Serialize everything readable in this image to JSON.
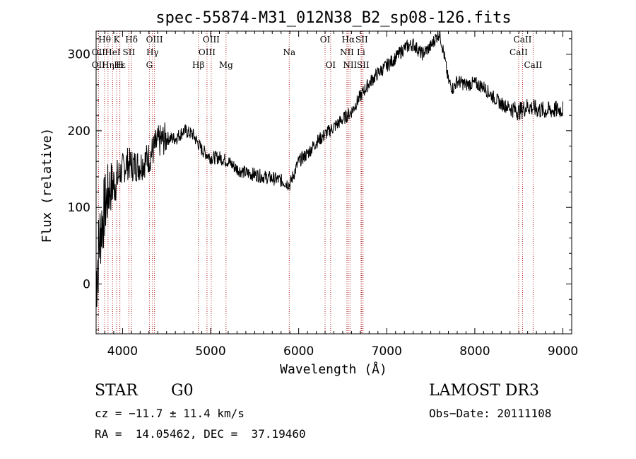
{
  "chart_data": {
    "type": "line",
    "title": "spec-55874-M31_012N38_B2_sp08-126.fits",
    "xlabel": "Wavelength (Å)",
    "ylabel": "Flux (relative)",
    "xlim": [
      3700,
      9100
    ],
    "ylim": [
      -65,
      330
    ],
    "x_ticks": [
      4000,
      5000,
      6000,
      7000,
      8000,
      9000
    ],
    "y_ticks": [
      0,
      100,
      200,
      300
    ],
    "series": [
      {
        "name": "flux",
        "x": [
          3700,
          3750,
          3800,
          3850,
          3900,
          3950,
          4000,
          4050,
          4100,
          4200,
          4300,
          4400,
          4500,
          4600,
          4700,
          4800,
          4900,
          5000,
          5100,
          5200,
          5300,
          5400,
          5500,
          5600,
          5700,
          5800,
          5900,
          6000,
          6100,
          6200,
          6300,
          6400,
          6500,
          6550,
          6600,
          6700,
          6800,
          6900,
          7000,
          7100,
          7200,
          7300,
          7400,
          7500,
          7550,
          7600,
          7650,
          7700,
          7750,
          7800,
          7900,
          8000,
          8100,
          8200,
          8300,
          8400,
          8500,
          8600,
          8700,
          8800,
          8900,
          9000
        ],
        "values": [
          5,
          70,
          100,
          125,
          130,
          140,
          150,
          158,
          155,
          155,
          165,
          185,
          190,
          190,
          200,
          195,
          175,
          165,
          165,
          160,
          150,
          145,
          143,
          140,
          138,
          135,
          130,
          160,
          170,
          185,
          195,
          205,
          215,
          220,
          225,
          245,
          262,
          275,
          285,
          295,
          308,
          313,
          300,
          310,
          320,
          328,
          300,
          265,
          255,
          265,
          260,
          262,
          257,
          245,
          235,
          230,
          225,
          232,
          228,
          226,
          227,
          228
        ]
      }
    ],
    "line_markers": [
      {
        "label": "Hθ",
        "x": 3797,
        "row": 0
      },
      {
        "label": "K",
        "x": 3934,
        "row": 0
      },
      {
        "label": "Hδ",
        "x": 4102,
        "row": 0
      },
      {
        "label": "OIII",
        "x": 4363,
        "row": 0
      },
      {
        "label": "OIII",
        "x": 5007,
        "row": 0
      },
      {
        "label": "OI",
        "x": 6300,
        "row": 0
      },
      {
        "label": "Hα",
        "x": 6563,
        "row": 0
      },
      {
        "label": "SII",
        "x": 6716,
        "row": 0
      },
      {
        "label": "CaII",
        "x": 8542,
        "row": 0
      },
      {
        "label": "OII",
        "x": 3727,
        "row": 1
      },
      {
        "label": "HeI",
        "x": 3888,
        "row": 1
      },
      {
        "label": "SII",
        "x": 4072,
        "row": 1
      },
      {
        "label": "Hγ",
        "x": 4340,
        "row": 1
      },
      {
        "label": "OIII",
        "x": 4959,
        "row": 1
      },
      {
        "label": "Na",
        "x": 5893,
        "row": 1
      },
      {
        "label": "NII",
        "x": 6548,
        "row": 1
      },
      {
        "label": "Li",
        "x": 6708,
        "row": 1
      },
      {
        "label": "CaII",
        "x": 8498,
        "row": 1
      },
      {
        "label": "OII",
        "x": 3727,
        "row": 2
      },
      {
        "label": "Hε",
        "x": 3970,
        "row": 2
      },
      {
        "label": "Hη",
        "x": 3835,
        "row": 2
      },
      {
        "label": "H",
        "x": 3969,
        "row": 2
      },
      {
        "label": "G",
        "x": 4305,
        "row": 2
      },
      {
        "label": "Hβ",
        "x": 4861,
        "row": 2
      },
      {
        "label": "Mg",
        "x": 5175,
        "row": 2
      },
      {
        "label": "OI",
        "x": 6363,
        "row": 2
      },
      {
        "label": "NII",
        "x": 6583,
        "row": 2
      },
      {
        "label": "SII",
        "x": 6731,
        "row": 2
      },
      {
        "label": "CaII",
        "x": 8662,
        "row": 2
      }
    ],
    "marker_color": "#b22222"
  },
  "info": {
    "class": "STAR",
    "subclass": "G0",
    "survey": "LAMOST DR3",
    "cz": "cz = −11.7 ± 11.4 km/s",
    "obs_date": "Obs−Date: 20111108",
    "coords": "RA =  14.05462, DEC =  37.19460"
  }
}
